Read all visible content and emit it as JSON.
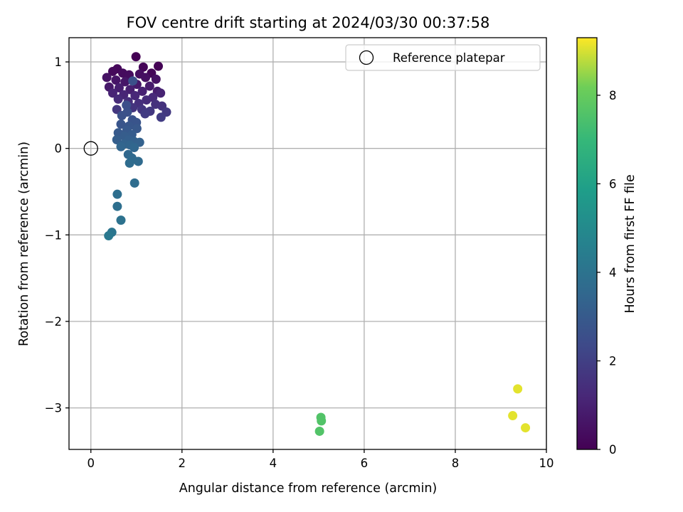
{
  "chart_data": {
    "type": "scatter",
    "title": "FOV centre drift starting at 2024/03/30 00:37:58",
    "xlabel": "Angular distance from reference (arcmin)",
    "ylabel": "Rotation from reference (arcmin)",
    "xlim": [
      -0.48,
      10.0
    ],
    "ylim": [
      -3.48,
      1.28
    ],
    "xticks": [
      0,
      2,
      4,
      6,
      8,
      10
    ],
    "yticks": [
      1,
      0,
      -1,
      -2,
      -3
    ],
    "ytick_labels": [
      "1",
      "0",
      "−1",
      "−2",
      "−3"
    ],
    "grid": true,
    "legend": {
      "placement": "top-right",
      "entries": [
        "Reference platepar"
      ]
    },
    "reference_point": {
      "x": 0,
      "y": 0,
      "name": "Reference platepar",
      "marker": "hollow-circle"
    },
    "colorbar": {
      "label": "Hours from first FF file",
      "colormap": "viridis",
      "range": [
        0,
        9.3
      ],
      "ticks": [
        0,
        2,
        4,
        6,
        8
      ]
    },
    "points": [
      {
        "x": 0.99,
        "y": 1.06,
        "t": 0.0
      },
      {
        "x": 1.48,
        "y": 0.95,
        "t": 0.05
      },
      {
        "x": 1.15,
        "y": 0.94,
        "t": 0.1
      },
      {
        "x": 1.33,
        "y": 0.87,
        "t": 0.15
      },
      {
        "x": 0.58,
        "y": 0.92,
        "t": 0.2
      },
      {
        "x": 0.48,
        "y": 0.89,
        "t": 0.25
      },
      {
        "x": 0.7,
        "y": 0.87,
        "t": 0.3
      },
      {
        "x": 0.84,
        "y": 0.85,
        "t": 0.35
      },
      {
        "x": 1.07,
        "y": 0.86,
        "t": 0.4
      },
      {
        "x": 1.2,
        "y": 0.82,
        "t": 0.45
      },
      {
        "x": 1.43,
        "y": 0.8,
        "t": 0.5
      },
      {
        "x": 0.35,
        "y": 0.82,
        "t": 0.55
      },
      {
        "x": 0.55,
        "y": 0.79,
        "t": 0.6
      },
      {
        "x": 0.75,
        "y": 0.77,
        "t": 0.65
      },
      {
        "x": 0.4,
        "y": 0.71,
        "t": 0.7
      },
      {
        "x": 1.01,
        "y": 0.74,
        "t": 0.75
      },
      {
        "x": 1.29,
        "y": 0.72,
        "t": 0.8
      },
      {
        "x": 1.46,
        "y": 0.66,
        "t": 0.85
      },
      {
        "x": 0.62,
        "y": 0.7,
        "t": 0.9
      },
      {
        "x": 0.86,
        "y": 0.68,
        "t": 0.95
      },
      {
        "x": 1.13,
        "y": 0.66,
        "t": 1.0
      },
      {
        "x": 1.53,
        "y": 0.64,
        "t": 1.05
      },
      {
        "x": 0.48,
        "y": 0.64,
        "t": 1.1
      },
      {
        "x": 0.72,
        "y": 0.62,
        "t": 1.15
      },
      {
        "x": 0.97,
        "y": 0.61,
        "t": 1.2
      },
      {
        "x": 1.36,
        "y": 0.59,
        "t": 1.25
      },
      {
        "x": 0.6,
        "y": 0.57,
        "t": 1.3
      },
      {
        "x": 1.22,
        "y": 0.56,
        "t": 1.35
      },
      {
        "x": 0.82,
        "y": 0.54,
        "t": 1.4
      },
      {
        "x": 1.05,
        "y": 0.52,
        "t": 1.45
      },
      {
        "x": 1.42,
        "y": 0.51,
        "t": 1.5
      },
      {
        "x": 1.56,
        "y": 0.49,
        "t": 1.55
      },
      {
        "x": 0.92,
        "y": 0.47,
        "t": 1.6
      },
      {
        "x": 1.12,
        "y": 0.45,
        "t": 1.65
      },
      {
        "x": 0.57,
        "y": 0.45,
        "t": 1.7
      },
      {
        "x": 1.3,
        "y": 0.43,
        "t": 1.75
      },
      {
        "x": 1.66,
        "y": 0.42,
        "t": 1.8
      },
      {
        "x": 1.19,
        "y": 0.4,
        "t": 1.85
      },
      {
        "x": 1.54,
        "y": 0.36,
        "t": 1.9
      },
      {
        "x": 0.92,
        "y": 0.78,
        "t": 2.6
      },
      {
        "x": 0.78,
        "y": 0.5,
        "t": 2.55
      },
      {
        "x": 0.8,
        "y": 0.42,
        "t": 2.6
      },
      {
        "x": 0.68,
        "y": 0.38,
        "t": 2.65
      },
      {
        "x": 0.91,
        "y": 0.33,
        "t": 2.7
      },
      {
        "x": 1.0,
        "y": 0.3,
        "t": 2.75
      },
      {
        "x": 0.66,
        "y": 0.28,
        "t": 2.8
      },
      {
        "x": 0.84,
        "y": 0.26,
        "t": 2.85
      },
      {
        "x": 1.01,
        "y": 0.23,
        "t": 2.9
      },
      {
        "x": 0.79,
        "y": 0.21,
        "t": 2.95
      },
      {
        "x": 0.6,
        "y": 0.18,
        "t": 3.0
      },
      {
        "x": 0.9,
        "y": 0.16,
        "t": 3.05
      },
      {
        "x": 0.74,
        "y": 0.14,
        "t": 3.1
      },
      {
        "x": 0.57,
        "y": 0.1,
        "t": 3.15
      },
      {
        "x": 0.83,
        "y": 0.1,
        "t": 3.2
      },
      {
        "x": 0.95,
        "y": 0.08,
        "t": 3.25
      },
      {
        "x": 1.07,
        "y": 0.07,
        "t": 3.3
      },
      {
        "x": 0.73,
        "y": 0.05,
        "t": 3.35
      },
      {
        "x": 0.86,
        "y": 0.04,
        "t": 3.4
      },
      {
        "x": 0.66,
        "y": 0.02,
        "t": 3.45
      },
      {
        "x": 0.95,
        "y": 0.01,
        "t": 3.5
      },
      {
        "x": 0.82,
        "y": -0.07,
        "t": 3.55
      },
      {
        "x": 0.9,
        "y": -0.11,
        "t": 3.6
      },
      {
        "x": 1.04,
        "y": -0.15,
        "t": 3.65
      },
      {
        "x": 0.85,
        "y": -0.17,
        "t": 3.7
      },
      {
        "x": 0.96,
        "y": -0.4,
        "t": 3.75
      },
      {
        "x": 0.58,
        "y": -0.53,
        "t": 3.8
      },
      {
        "x": 0.58,
        "y": -0.67,
        "t": 3.85
      },
      {
        "x": 0.66,
        "y": -0.83,
        "t": 3.95
      },
      {
        "x": 0.46,
        "y": -0.97,
        "t": 4.1
      },
      {
        "x": 0.39,
        "y": -1.01,
        "t": 4.2
      },
      {
        "x": 5.05,
        "y": -3.11,
        "t": 7.6
      },
      {
        "x": 5.06,
        "y": -3.15,
        "t": 7.6
      },
      {
        "x": 5.02,
        "y": -3.27,
        "t": 7.6
      },
      {
        "x": 9.37,
        "y": -2.78,
        "t": 9.1
      },
      {
        "x": 9.26,
        "y": -3.09,
        "t": 9.1
      },
      {
        "x": 9.54,
        "y": -3.23,
        "t": 9.1
      }
    ]
  }
}
